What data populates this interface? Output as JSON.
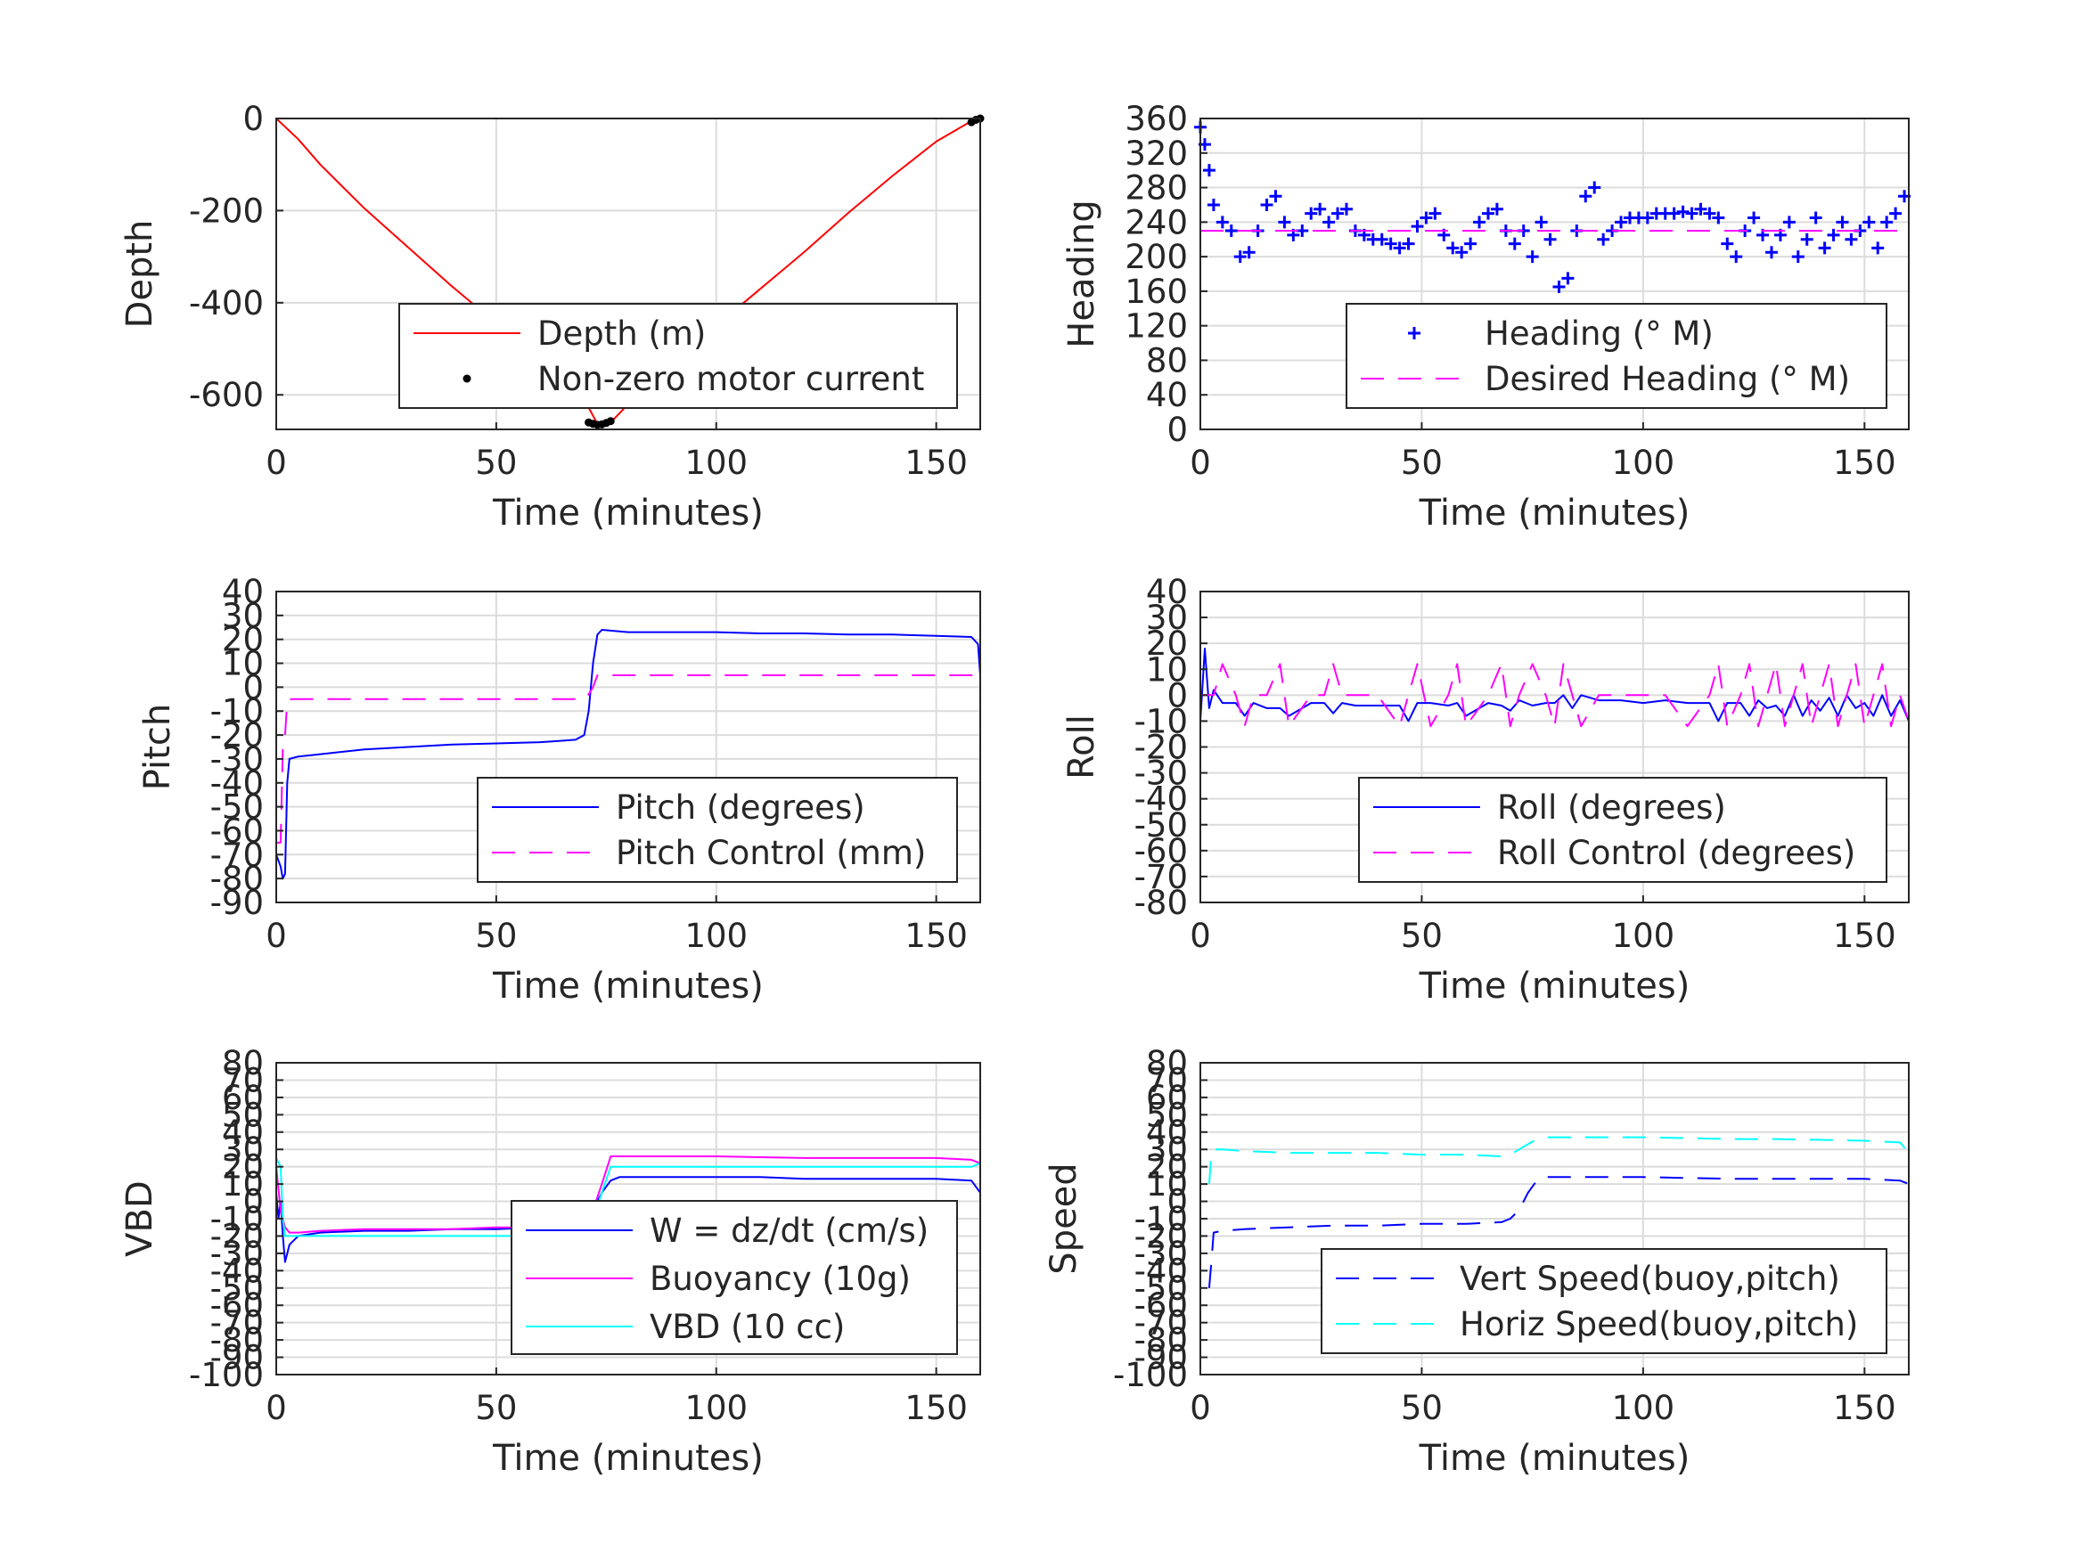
{
  "chart_data": [
    {
      "type": "line",
      "xlabel": "Time (minutes)",
      "ylabel": "Depth",
      "xlim": [
        0,
        160
      ],
      "ylim": [
        -675,
        0
      ],
      "xticks": [
        0,
        50,
        100,
        150
      ],
      "yticks": [
        0,
        -200,
        -400,
        -600
      ],
      "legend_position": "center-bottom",
      "series": [
        {
          "name": "Depth (m)",
          "color": "#ff0000",
          "style": "solid",
          "x": [
            0,
            5,
            10,
            20,
            30,
            40,
            50,
            60,
            70,
            73,
            76,
            80,
            90,
            100,
            110,
            120,
            130,
            140,
            150,
            159
          ],
          "y": [
            0,
            -45,
            -100,
            -195,
            -280,
            -365,
            -445,
            -525,
            -610,
            -663,
            -660,
            -620,
            -535,
            -450,
            -370,
            -290,
            -205,
            -125,
            -50,
            0
          ]
        },
        {
          "name": "Non-zero motor current",
          "color": "#000000",
          "style": "markers",
          "x": [
            71,
            72,
            73,
            74,
            75,
            76,
            158,
            159,
            160
          ],
          "y": [
            -660,
            -663,
            -665,
            -664,
            -661,
            -657,
            -8,
            -3,
            0
          ]
        }
      ]
    },
    {
      "type": "line",
      "xlabel": "Time (minutes)",
      "ylabel": "Heading",
      "xlim": [
        0,
        160
      ],
      "ylim": [
        0,
        360
      ],
      "xticks": [
        0,
        50,
        100,
        150
      ],
      "yticks": [
        0,
        40,
        80,
        120,
        160,
        200,
        240,
        280,
        320,
        360
      ],
      "legend_position": "center-bottom",
      "series": [
        {
          "name": "Heading (° M)",
          "color": "#0000ff",
          "style": "plus-markers",
          "x": [
            0,
            1,
            2,
            3,
            5,
            7,
            9,
            11,
            13,
            15,
            17,
            19,
            21,
            23,
            25,
            27,
            29,
            31,
            33,
            35,
            37,
            39,
            41,
            43,
            45,
            47,
            49,
            51,
            53,
            55,
            57,
            59,
            61,
            63,
            65,
            67,
            69,
            71,
            73,
            75,
            77,
            79,
            81,
            83,
            85,
            87,
            89,
            91,
            93,
            95,
            97,
            99,
            101,
            103,
            105,
            107,
            109,
            111,
            113,
            115,
            117,
            119,
            121,
            123,
            125,
            127,
            129,
            131,
            133,
            135,
            137,
            139,
            141,
            143,
            145,
            147,
            149,
            151,
            153,
            155,
            157,
            159
          ],
          "y": [
            350,
            330,
            300,
            260,
            240,
            230,
            200,
            205,
            230,
            260,
            270,
            240,
            225,
            230,
            250,
            255,
            240,
            250,
            255,
            230,
            225,
            220,
            220,
            215,
            210,
            215,
            235,
            245,
            250,
            225,
            210,
            205,
            215,
            240,
            250,
            255,
            230,
            215,
            230,
            200,
            240,
            220,
            165,
            175,
            230,
            270,
            280,
            220,
            230,
            240,
            245,
            245,
            245,
            250,
            250,
            250,
            252,
            250,
            255,
            250,
            245,
            215,
            200,
            230,
            245,
            225,
            205,
            225,
            240,
            200,
            220,
            245,
            210,
            225,
            240,
            220,
            230,
            240,
            210,
            240,
            250,
            270
          ]
        },
        {
          "name": "Desired Heading (° M)",
          "color": "#ff00ff",
          "style": "dashed",
          "x": [
            0,
            160
          ],
          "y": [
            230,
            230
          ]
        }
      ]
    },
    {
      "type": "line",
      "xlabel": "Time (minutes)",
      "ylabel": "Pitch",
      "xlim": [
        0,
        160
      ],
      "ylim": [
        -90,
        40
      ],
      "xticks": [
        0,
        50,
        100,
        150
      ],
      "yticks": [
        40,
        30,
        20,
        10,
        0,
        -10,
        -20,
        -30,
        -40,
        -50,
        -60,
        -70,
        -80,
        -90
      ],
      "legend_position": "center-bottom",
      "series": [
        {
          "name": "Pitch (degrees)",
          "color": "#0000ff",
          "style": "solid",
          "x": [
            0,
            1,
            1.5,
            2,
            2.5,
            3,
            5,
            10,
            20,
            30,
            40,
            50,
            60,
            68,
            70,
            71,
            72,
            73,
            74,
            80,
            90,
            100,
            110,
            120,
            130,
            140,
            150,
            158,
            159.5,
            160
          ],
          "y": [
            -70,
            -75,
            -80,
            -78,
            -40,
            -30,
            -29,
            -28,
            -26,
            -25,
            -24,
            -23.5,
            -23,
            -22,
            -20,
            -10,
            10,
            22,
            24,
            23,
            23,
            23,
            22.5,
            22.5,
            22,
            22,
            21.5,
            21,
            18,
            5
          ]
        },
        {
          "name": "Pitch Control (mm)",
          "color": "#ff00ff",
          "style": "dashed",
          "x": [
            0,
            1,
            1.5,
            2,
            2.5,
            3,
            70,
            71,
            72,
            73,
            74,
            160
          ],
          "y": [
            -65,
            -65,
            -25,
            -20,
            -6,
            -5,
            -5,
            -3,
            0,
            5,
            5,
            5
          ]
        }
      ]
    },
    {
      "type": "line",
      "xlabel": "Time (minutes)",
      "ylabel": "Roll",
      "xlim": [
        0,
        160
      ],
      "ylim": [
        -80,
        40
      ],
      "xticks": [
        0,
        50,
        100,
        150
      ],
      "yticks": [
        40,
        30,
        20,
        10,
        0,
        -10,
        -20,
        -30,
        -40,
        -50,
        -60,
        -70,
        -80
      ],
      "legend_position": "center-bottom",
      "series": [
        {
          "name": "Roll (degrees)",
          "color": "#0000ff",
          "style": "solid",
          "x": [
            0,
            1,
            2,
            3,
            5,
            8,
            10,
            12,
            15,
            18,
            20,
            25,
            28,
            30,
            32,
            35,
            40,
            45,
            47,
            49,
            52,
            56,
            58,
            60,
            65,
            68,
            70,
            72,
            75,
            78,
            80,
            82,
            84,
            86,
            90,
            95,
            100,
            105,
            110,
            115,
            117,
            119,
            122,
            124,
            126,
            128,
            130,
            132,
            134,
            136,
            138,
            140,
            142,
            144,
            146,
            148,
            150,
            152,
            154,
            156,
            158,
            160
          ],
          "y": [
            -10,
            18,
            -5,
            2,
            -3,
            -3,
            -8,
            -3,
            -5,
            -5,
            -8,
            -3,
            -3,
            -7,
            -3,
            -4,
            -4,
            -4,
            -10,
            -3,
            -3,
            -4,
            -3,
            -8,
            -3,
            -4,
            -6,
            -2,
            -4,
            -3,
            -3,
            0,
            -5,
            0,
            -2,
            -2,
            -3,
            -2,
            -3,
            -3,
            -10,
            -3,
            -3,
            -8,
            -2,
            -5,
            -4,
            -8,
            0,
            -8,
            -2,
            -6,
            -1,
            -8,
            0,
            -5,
            -3,
            -8,
            0,
            -8,
            -2,
            -10
          ]
        },
        {
          "name": "Roll Control (degrees)",
          "color": "#ff00ff",
          "style": "dashed",
          "x": [
            0,
            3,
            5,
            8,
            10,
            12,
            15,
            18,
            20,
            25,
            28,
            30,
            32,
            35,
            40,
            45,
            47,
            49,
            52,
            56,
            58,
            60,
            65,
            68,
            70,
            72,
            75,
            78,
            80,
            82,
            84,
            86,
            90,
            95,
            100,
            105,
            110,
            115,
            117,
            119,
            122,
            124,
            126,
            128,
            130,
            132,
            134,
            136,
            138,
            140,
            142,
            144,
            146,
            148,
            150,
            152,
            154,
            156,
            158,
            160
          ],
          "y": [
            0,
            0,
            12,
            0,
            -12,
            0,
            0,
            12,
            -12,
            0,
            0,
            12,
            0,
            0,
            0,
            -12,
            0,
            12,
            -12,
            0,
            12,
            -12,
            0,
            12,
            -12,
            0,
            12,
            0,
            -12,
            12,
            0,
            -12,
            0,
            0,
            0,
            0,
            -12,
            0,
            12,
            -12,
            0,
            12,
            -12,
            0,
            12,
            -12,
            0,
            12,
            -12,
            0,
            12,
            -12,
            0,
            12,
            -12,
            0,
            12,
            -12,
            0,
            -10
          ]
        }
      ]
    },
    {
      "type": "line",
      "xlabel": "Time (minutes)",
      "ylabel": "VBD",
      "xlim": [
        0,
        160
      ],
      "ylim": [
        -100,
        80
      ],
      "xticks": [
        0,
        50,
        100,
        150
      ],
      "yticks": [
        80,
        70,
        60,
        50,
        40,
        30,
        20,
        10,
        0,
        -10,
        -20,
        -30,
        -40,
        -50,
        -60,
        -70,
        -80,
        -90,
        -100
      ],
      "ytick_labels": [
        "80",
        "70",
        "60",
        "50",
        "40",
        "30",
        "20",
        "10",
        "0",
        "-10",
        "-20",
        "-30",
        "-40",
        "-50",
        "-60",
        "-70",
        "-80",
        "-90",
        "-100"
      ],
      "legend_position": "center-bottom",
      "series": [
        {
          "name": "W = dz/dt (cm/s)",
          "color": "#0000ff",
          "style": "solid",
          "x": [
            0,
            0.5,
            1,
            1.5,
            2,
            3,
            5,
            10,
            20,
            30,
            40,
            50,
            60,
            68,
            70,
            72,
            74,
            76,
            78,
            80,
            90,
            100,
            110,
            120,
            130,
            140,
            150,
            158,
            160
          ],
          "y": [
            5,
            -10,
            0,
            -20,
            -35,
            -25,
            -20,
            -18,
            -17,
            -17,
            -16,
            -16,
            -15,
            -14,
            -15,
            -5,
            5,
            12,
            14,
            14,
            14,
            14,
            14,
            13,
            13,
            13,
            13,
            12,
            5
          ]
        },
        {
          "name": "Buoyancy (10g)",
          "color": "#ff00ff",
          "style": "solid",
          "x": [
            0,
            1,
            2,
            3,
            5,
            10,
            20,
            30,
            40,
            50,
            60,
            68,
            70,
            72,
            74,
            76,
            80,
            90,
            100,
            110,
            120,
            130,
            140,
            150,
            158,
            160
          ],
          "y": [
            20,
            -5,
            -15,
            -18,
            -18,
            -17,
            -16,
            -16,
            -16,
            -15,
            -15,
            -15,
            -14,
            -5,
            10,
            26,
            26,
            26,
            26,
            25.5,
            25,
            25,
            25,
            25,
            24,
            22
          ]
        },
        {
          "name": "VBD (10 cc)",
          "color": "#00ffff",
          "style": "solid",
          "x": [
            0,
            1,
            1.5,
            2,
            3,
            5,
            10,
            20,
            30,
            40,
            50,
            60,
            68,
            70,
            72,
            74,
            76,
            80,
            90,
            100,
            110,
            120,
            130,
            140,
            150,
            158,
            160
          ],
          "y": [
            25,
            20,
            -10,
            -20,
            -20,
            -20,
            -20,
            -20,
            -20,
            -20,
            -20,
            -20,
            -20,
            -20,
            -10,
            5,
            20,
            20,
            20,
            20,
            20,
            20,
            20,
            20,
            20,
            20,
            22
          ]
        }
      ]
    },
    {
      "type": "line",
      "xlabel": "Time (minutes)",
      "ylabel": "Speed",
      "xlim": [
        0,
        160
      ],
      "ylim": [
        -100,
        80
      ],
      "xticks": [
        0,
        50,
        100,
        150
      ],
      "yticks": [
        80,
        70,
        60,
        50,
        40,
        30,
        20,
        10,
        0,
        -10,
        -20,
        -30,
        -40,
        -50,
        -60,
        -70,
        -80,
        -90,
        -100
      ],
      "ytick_labels": [
        "80",
        "70",
        "60",
        "50",
        "40",
        "30",
        "20",
        "10",
        "0",
        "-10",
        "-20",
        "-30",
        "-40",
        "-50",
        "-60",
        "-70",
        "-80",
        "-90",
        "-100"
      ],
      "legend_position": "center-bottom",
      "series": [
        {
          "name": "Vert Speed(buoy,pitch)",
          "color": "#0000ff",
          "style": "dashed",
          "x": [
            2,
            2.5,
            3,
            5,
            10,
            20,
            30,
            40,
            50,
            60,
            68,
            70,
            72,
            74,
            76,
            78,
            80,
            90,
            100,
            110,
            120,
            130,
            140,
            150,
            158,
            160
          ],
          "y": [
            -50,
            -35,
            -18,
            -17,
            -16,
            -15,
            -14,
            -14,
            -13,
            -13,
            -12,
            -10,
            -5,
            5,
            12,
            14,
            14,
            14,
            14,
            13.5,
            13,
            13,
            13,
            13,
            12,
            10
          ]
        },
        {
          "name": "Horiz Speed(buoy,pitch)",
          "color": "#00ffff",
          "style": "dashed",
          "x": [
            2,
            2.5,
            3,
            5,
            10,
            20,
            30,
            40,
            50,
            60,
            68,
            70,
            72,
            74,
            76,
            78,
            80,
            90,
            100,
            110,
            120,
            130,
            140,
            150,
            158,
            160
          ],
          "y": [
            10,
            28,
            30,
            30,
            29,
            28,
            28,
            28,
            27,
            27,
            26,
            27,
            30,
            33,
            36,
            37,
            37,
            37,
            37,
            36.5,
            36,
            36,
            35.5,
            35,
            34,
            28
          ]
        }
      ]
    }
  ]
}
